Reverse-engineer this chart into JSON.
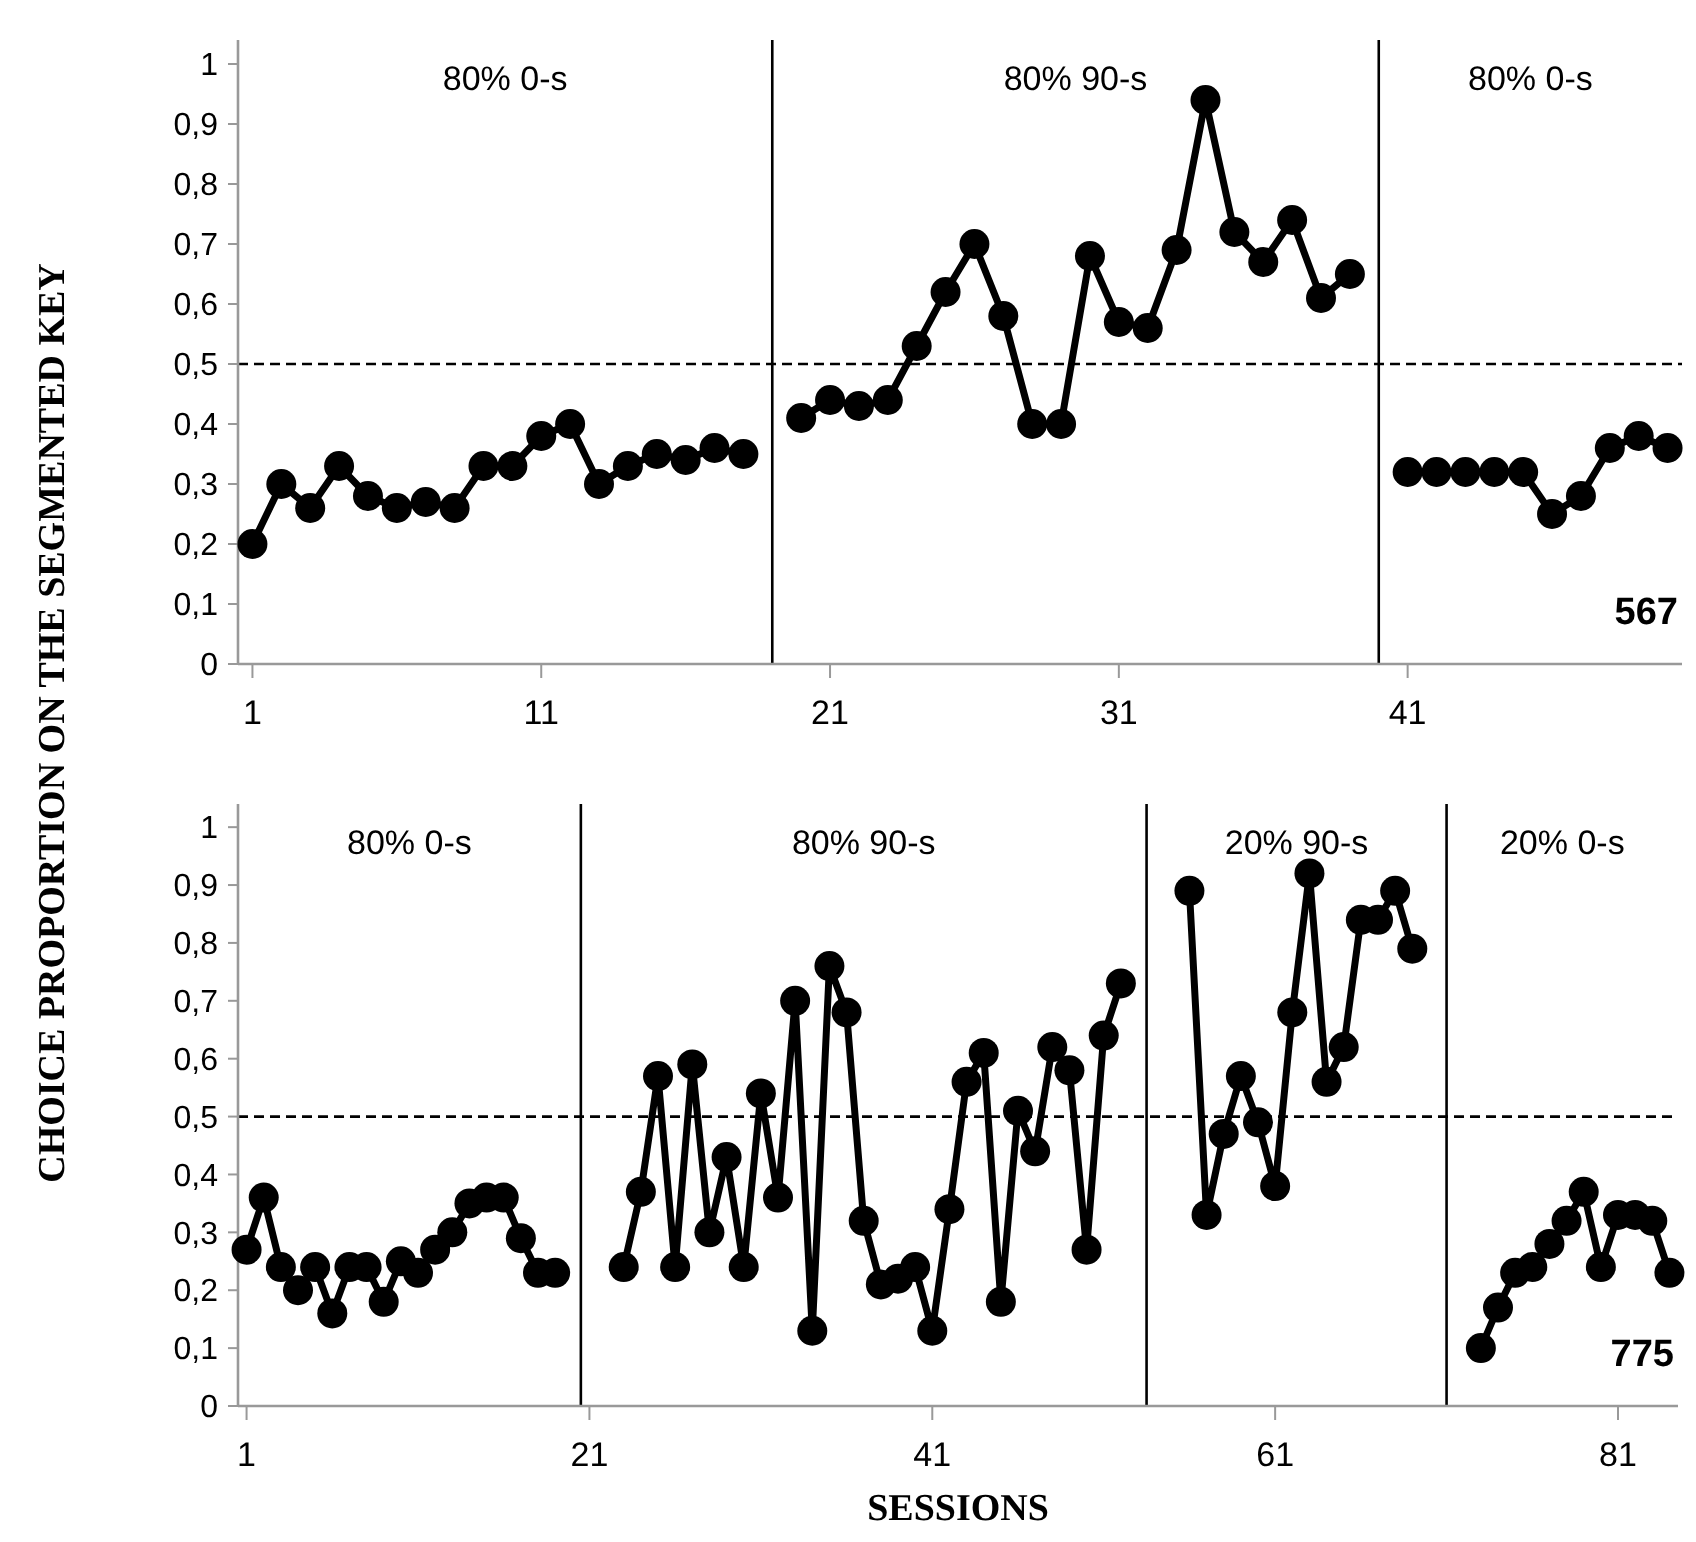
{
  "chart_data": [
    {
      "type": "line",
      "ylabel": "CHOICE PROPORTION ON THE SEGMENTED KEY",
      "marker": "circle",
      "line_style": "solid",
      "grid": false,
      "xlim": [
        0.5,
        50.5
      ],
      "xticks": [
        1,
        11,
        21,
        31,
        41
      ],
      "ylim": [
        0,
        1.04
      ],
      "yticks": [
        {
          "value": 0,
          "label": "0"
        },
        {
          "value": 0.1,
          "label": "0,1"
        },
        {
          "value": 0.2,
          "label": "0,2"
        },
        {
          "value": 0.3,
          "label": "0,3"
        },
        {
          "value": 0.4,
          "label": "0,4"
        },
        {
          "value": 0.5,
          "label": "0,5"
        },
        {
          "value": 0.6,
          "label": "0,6"
        },
        {
          "value": 0.7,
          "label": "0,7"
        },
        {
          "value": 0.8,
          "label": "0,8"
        },
        {
          "value": 0.9,
          "label": "0,9"
        },
        {
          "value": 1,
          "label": "1"
        }
      ],
      "series": [
        {
          "color": "#000000",
          "x": [
            1,
            2,
            3,
            4,
            5,
            6,
            7,
            8,
            9,
            10,
            11,
            12,
            13,
            14,
            15,
            16,
            17,
            18
          ],
          "values": [
            0.2,
            0.3,
            0.26,
            0.33,
            0.28,
            0.26,
            0.27,
            0.26,
            0.33,
            0.33,
            0.38,
            0.4,
            0.3,
            0.33,
            0.35,
            0.34,
            0.36,
            0.35
          ]
        },
        {
          "color": "#000000",
          "x": [
            20,
            21,
            22,
            23,
            24,
            25,
            26,
            27,
            28,
            29,
            30,
            31,
            32,
            33,
            34,
            35,
            36,
            37,
            38,
            39
          ],
          "values": [
            0.41,
            0.44,
            0.43,
            0.44,
            0.53,
            0.62,
            0.7,
            0.58,
            0.4,
            0.4,
            0.68,
            0.57,
            0.56,
            0.69,
            0.94,
            0.72,
            0.67,
            0.74,
            0.61,
            0.65
          ]
        },
        {
          "color": "#000000",
          "x": [
            41,
            42,
            43,
            44,
            45,
            46,
            47,
            48,
            49,
            50
          ],
          "values": [
            0.32,
            0.32,
            0.32,
            0.32,
            0.32,
            0.25,
            0.28,
            0.36,
            0.38,
            0.36
          ]
        }
      ],
      "ref_lines": [
        {
          "axis": "y",
          "value": 0.5,
          "color": "#000000",
          "line_style": "dashed"
        },
        {
          "axis": "x",
          "value": 19,
          "color": "#000000",
          "line_style": "solid"
        },
        {
          "axis": "x",
          "value": 40,
          "color": "#000000",
          "line_style": "solid"
        }
      ],
      "annotations": [
        "80% 0-s",
        "80% 90-s",
        "80% 0-s",
        "567"
      ]
    },
    {
      "type": "line",
      "xlabel": "SESSIONS",
      "marker": "circle",
      "line_style": "solid",
      "grid": false,
      "xlim": [
        0.5,
        84.5
      ],
      "xticks": [
        1,
        21,
        41,
        61,
        81
      ],
      "ylim": [
        0,
        1.04
      ],
      "yticks": [
        {
          "value": 0,
          "label": "0"
        },
        {
          "value": 0.1,
          "label": "0,1"
        },
        {
          "value": 0.2,
          "label": "0,2"
        },
        {
          "value": 0.3,
          "label": "0,3"
        },
        {
          "value": 0.4,
          "label": "0,4"
        },
        {
          "value": 0.5,
          "label": "0,5"
        },
        {
          "value": 0.6,
          "label": "0,6"
        },
        {
          "value": 0.7,
          "label": "0,7"
        },
        {
          "value": 0.8,
          "label": "0,8"
        },
        {
          "value": 0.9,
          "label": "0,9"
        },
        {
          "value": 1,
          "label": "1"
        }
      ],
      "series": [
        {
          "color": "#000000",
          "x": [
            1,
            2,
            3,
            4,
            5,
            6,
            7,
            8,
            9,
            10,
            11,
            12,
            13,
            14,
            15,
            16,
            17,
            18,
            19
          ],
          "values": [
            0.27,
            0.36,
            0.24,
            0.2,
            0.24,
            0.16,
            0.24,
            0.24,
            0.18,
            0.25,
            0.23,
            0.27,
            0.3,
            0.35,
            0.36,
            0.36,
            0.29,
            0.23,
            0.23
          ]
        },
        {
          "color": "#000000",
          "x": [
            23,
            24,
            25,
            26,
            27,
            28,
            29,
            30,
            31,
            32,
            33,
            34,
            35,
            36,
            37,
            38,
            39,
            40,
            41,
            42,
            43,
            44,
            45,
            46,
            47,
            48,
            49,
            50,
            51,
            52
          ],
          "values": [
            0.24,
            0.37,
            0.57,
            0.24,
            0.59,
            0.3,
            0.43,
            0.24,
            0.54,
            0.36,
            0.7,
            0.13,
            0.76,
            0.68,
            0.32,
            0.21,
            0.22,
            0.24,
            0.13,
            0.34,
            0.56,
            0.61,
            0.18,
            0.51,
            0.44,
            0.62,
            0.58,
            0.27,
            0.64,
            0.73
          ]
        },
        {
          "color": "#000000",
          "x": [
            56,
            57,
            58,
            59,
            60,
            61,
            62,
            63,
            64,
            65,
            66,
            67,
            68,
            69
          ],
          "values": [
            0.89,
            0.33,
            0.47,
            0.57,
            0.49,
            0.38,
            0.68,
            0.92,
            0.56,
            0.62,
            0.84,
            0.84,
            0.89,
            0.79
          ]
        },
        {
          "color": "#000000",
          "x": [
            73,
            74,
            75,
            76,
            77,
            78,
            79,
            80,
            81,
            82,
            83,
            84
          ],
          "values": [
            0.1,
            0.17,
            0.23,
            0.24,
            0.28,
            0.32,
            0.37,
            0.24,
            0.33,
            0.33,
            0.32,
            0.23
          ]
        }
      ],
      "ref_lines": [
        {
          "axis": "y",
          "value": 0.5,
          "color": "#000000",
          "line_style": "dashed"
        },
        {
          "axis": "x",
          "value": 20.5,
          "color": "#000000",
          "line_style": "solid"
        },
        {
          "axis": "x",
          "value": 53.5,
          "color": "#000000",
          "line_style": "solid"
        },
        {
          "axis": "x",
          "value": 71,
          "color": "#000000",
          "line_style": "solid"
        }
      ],
      "annotations": [
        "80% 0-s",
        "80% 90-s",
        "20% 90-s",
        "20% 0-s",
        "775"
      ]
    }
  ]
}
